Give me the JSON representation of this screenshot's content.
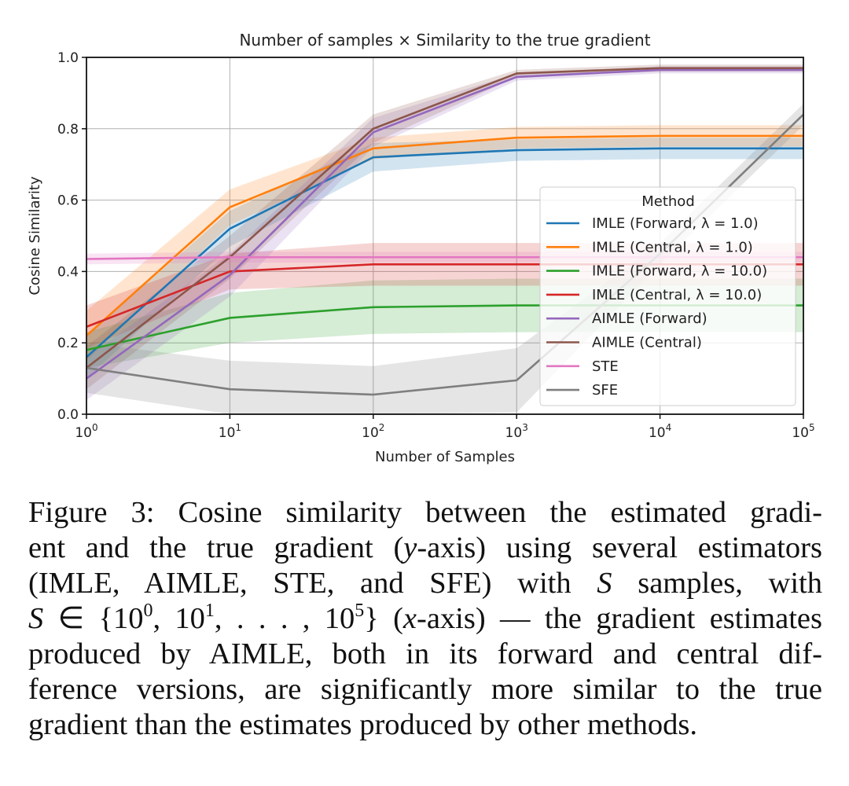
{
  "chart_data": {
    "type": "line",
    "title": "Number of samples × Similarity to the true gradient",
    "xlabel": "Number of Samples",
    "ylabel": "Cosine Similarity",
    "xscale": "log",
    "x": [
      1,
      10,
      100,
      1000,
      10000,
      100000
    ],
    "x_tick_labels": [
      {
        "base": "10",
        "exp": "0"
      },
      {
        "base": "10",
        "exp": "1"
      },
      {
        "base": "10",
        "exp": "2"
      },
      {
        "base": "10",
        "exp": "3"
      },
      {
        "base": "10",
        "exp": "4"
      },
      {
        "base": "10",
        "exp": "5"
      }
    ],
    "y_tick_labels": [
      "0.0",
      "0.2",
      "0.4",
      "0.6",
      "0.8",
      "1.0"
    ],
    "ylim": [
      0,
      1.0
    ],
    "grid": true,
    "legend": {
      "title": "Method",
      "placement": "lower-right"
    },
    "series": [
      {
        "name": "IMLE (Forward, λ = 1.0)",
        "color": "#1f77b4",
        "values": [
          0.16,
          0.52,
          0.72,
          0.74,
          0.745,
          0.745
        ],
        "band": [
          0.06,
          0.05,
          0.04,
          0.03,
          0.03,
          0.03
        ]
      },
      {
        "name": "IMLE (Central, λ = 1.0)",
        "color": "#ff7f0e",
        "values": [
          0.22,
          0.58,
          0.745,
          0.775,
          0.78,
          0.78
        ],
        "band": [
          0.07,
          0.05,
          0.03,
          0.03,
          0.03,
          0.03
        ]
      },
      {
        "name": "IMLE (Forward, λ = 10.0)",
        "color": "#2ca02c",
        "values": [
          0.18,
          0.27,
          0.3,
          0.305,
          0.305,
          0.305
        ],
        "band": [
          0.05,
          0.07,
          0.075,
          0.075,
          0.075,
          0.075
        ]
      },
      {
        "name": "IMLE (Central, λ = 10.0)",
        "color": "#d62728",
        "values": [
          0.245,
          0.4,
          0.42,
          0.42,
          0.42,
          0.42
        ],
        "band": [
          0.06,
          0.05,
          0.06,
          0.06,
          0.06,
          0.06
        ]
      },
      {
        "name": "AIMLE (Forward)",
        "color": "#9467bd",
        "values": [
          0.1,
          0.39,
          0.79,
          0.945,
          0.965,
          0.965
        ],
        "band": [
          0.06,
          0.06,
          0.04,
          0.01,
          0.01,
          0.01
        ]
      },
      {
        "name": "AIMLE (Central)",
        "color": "#8c564b",
        "values": [
          0.13,
          0.44,
          0.8,
          0.955,
          0.97,
          0.97
        ],
        "band": [
          0.06,
          0.06,
          0.04,
          0.01,
          0.01,
          0.01
        ]
      },
      {
        "name": "STE",
        "color": "#e377c2",
        "values": [
          0.435,
          0.44,
          0.44,
          0.44,
          0.44,
          0.44
        ],
        "band": [
          0.015,
          0.015,
          0.015,
          0.015,
          0.015,
          0.015
        ]
      },
      {
        "name": "SFE",
        "color": "#7f7f7f",
        "values": [
          0.13,
          0.07,
          0.055,
          0.095,
          0.45,
          0.84
        ],
        "band": [
          0.07,
          0.08,
          0.08,
          0.09,
          0.03,
          0.03
        ]
      }
    ]
  },
  "caption": {
    "lines": [
      [
        {
          "t": "Figure 3: Cosine similarity between the estimated gradi-"
        }
      ],
      [
        {
          "t": "ent and the true gradient ("
        },
        {
          "t": "y",
          "s": "i"
        },
        {
          "t": "-axis) using several estimators"
        }
      ],
      [
        {
          "t": "(IMLE, AIMLE, STE, and SFE) with "
        },
        {
          "t": "S",
          "s": "i"
        },
        {
          "t": " samples, with"
        }
      ],
      [
        {
          "t": "S",
          "s": "i"
        },
        {
          "t": " ∈ {10"
        },
        {
          "t": "0",
          "s": "sup"
        },
        {
          "t": ", 10"
        },
        {
          "t": "1",
          "s": "sup"
        },
        {
          "t": ", . . . , 10"
        },
        {
          "t": "5",
          "s": "sup"
        },
        {
          "t": "} ("
        },
        {
          "t": "x",
          "s": "i"
        },
        {
          "t": "-axis) — the gradient estimates"
        }
      ],
      [
        {
          "t": "produced by AIMLE, both in its forward and central dif-"
        }
      ],
      [
        {
          "t": "ference versions, are significantly more similar to the true"
        }
      ],
      [
        {
          "t": "gradient than the estimates produced by other methods."
        }
      ]
    ]
  }
}
